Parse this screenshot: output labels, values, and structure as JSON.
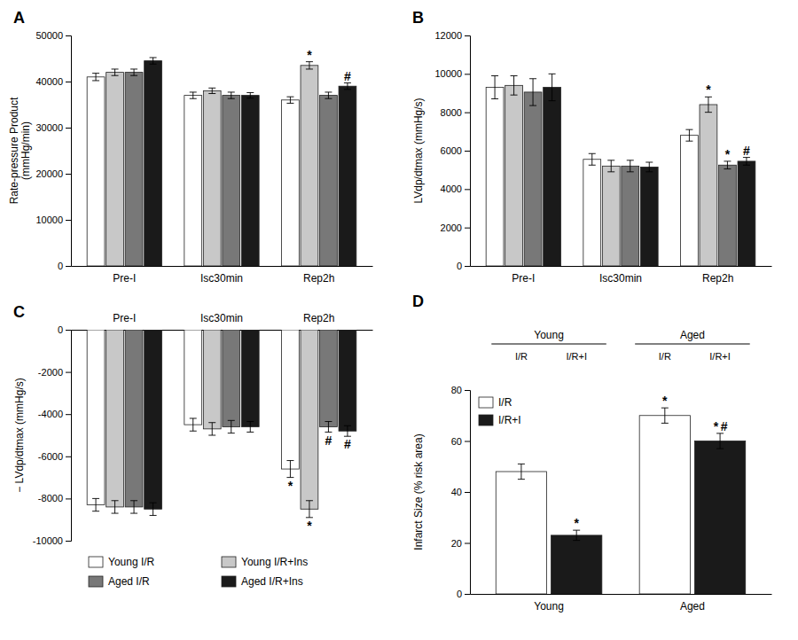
{
  "chart_data": [
    {
      "type": "bar",
      "title": "A",
      "y_label": "Rate-pressure Product\n(mmHg/min)",
      "categories": [
        "Pre-I",
        "Isc30min",
        "Rep2h"
      ],
      "series": [
        {
          "color": "#ffffff",
          "values": [
            41000,
            37000,
            36000
          ],
          "errors": [
            800,
            700,
            700
          ]
        },
        {
          "color": "#c8c8c8",
          "values": [
            42000,
            38000,
            43500
          ],
          "errors": [
            700,
            600,
            800
          ]
        },
        {
          "color": "#787878",
          "values": [
            42000,
            37000,
            37000
          ],
          "errors": [
            700,
            700,
            700
          ]
        },
        {
          "color": "#1a1a1a",
          "values": [
            44500,
            37000,
            39000
          ],
          "errors": [
            700,
            600,
            700
          ]
        }
      ],
      "ylim": [
        0,
        50000
      ],
      "yticks": [
        0,
        10000,
        20000,
        30000,
        40000,
        50000
      ],
      "annotations": [
        {
          "text": "*",
          "series": 1,
          "category": 2
        },
        {
          "text": "#",
          "series": 3,
          "category": 2
        }
      ]
    },
    {
      "type": "bar",
      "title": "B",
      "y_label": "LVdp/dtmax (mmHg/s)",
      "categories": [
        "Pre-I",
        "Isc30min",
        "Rep2h"
      ],
      "series": [
        {
          "color": "#ffffff",
          "values": [
            9300,
            5550,
            6800
          ],
          "errors": [
            600,
            300,
            300
          ]
        },
        {
          "color": "#c8c8c8",
          "values": [
            9400,
            5200,
            8400
          ],
          "errors": [
            500,
            300,
            400
          ]
        },
        {
          "color": "#787878",
          "values": [
            9050,
            5200,
            5250
          ],
          "errors": [
            700,
            300,
            200
          ]
        },
        {
          "color": "#1a1a1a",
          "values": [
            9300,
            5150,
            5450
          ],
          "errors": [
            700,
            250,
            200
          ]
        }
      ],
      "ylim": [
        0,
        12000
      ],
      "yticks": [
        0,
        2000,
        4000,
        6000,
        8000,
        10000,
        12000
      ],
      "annotations": [
        {
          "text": "*",
          "series": 1,
          "category": 2
        },
        {
          "text": "*",
          "series": 2,
          "category": 2
        },
        {
          "text": "#",
          "series": 3,
          "category": 2
        }
      ]
    },
    {
      "type": "bar",
      "title": "C",
      "y_label": "− LVdp/dtmax (mmHg/s)",
      "categories": [
        "Pre-I",
        "Isc30min",
        "Rep2h"
      ],
      "series": [
        {
          "name": "Young I/R",
          "color": "#ffffff",
          "values": [
            -8300,
            -4500,
            -6600
          ],
          "errors": [
            300,
            300,
            400
          ]
        },
        {
          "name": "Young I/R+Ins",
          "color": "#c8c8c8",
          "values": [
            -8400,
            -4700,
            -8500
          ],
          "errors": [
            300,
            300,
            400
          ]
        },
        {
          "name": "Aged I/R",
          "color": "#787878",
          "values": [
            -8400,
            -4600,
            -4600
          ],
          "errors": [
            300,
            300,
            250
          ]
        },
        {
          "name": "Aged I/R+Ins",
          "color": "#1a1a1a",
          "values": [
            -8500,
            -4600,
            -4800
          ],
          "errors": [
            300,
            250,
            250
          ]
        }
      ],
      "ylim": [
        -10000,
        0
      ],
      "yticks": [
        -10000,
        -8000,
        -6000,
        -4000,
        -2000,
        0
      ],
      "legend": "bottom",
      "annotations": [
        {
          "text": "*",
          "series": 0,
          "category": 2
        },
        {
          "text": "*",
          "series": 1,
          "category": 2
        },
        {
          "text": "#",
          "series": 2,
          "category": 2
        },
        {
          "text": "#",
          "series": 3,
          "category": 2
        }
      ]
    },
    {
      "type": "bar",
      "title": "D",
      "y_label": "Infarct Size (% risk area)",
      "categories": [
        "Young",
        "Aged"
      ],
      "series": [
        {
          "name": "I/R",
          "color": "#ffffff",
          "values": [
            48,
            70
          ],
          "errors": [
            3,
            3
          ]
        },
        {
          "name": "I/R+I",
          "color": "#1a1a1a",
          "values": [
            23,
            60
          ],
          "errors": [
            2,
            3
          ]
        }
      ],
      "ylim": [
        0,
        80
      ],
      "yticks": [
        0,
        20,
        40,
        60,
        80
      ],
      "legend": "upper left",
      "annotations": [
        {
          "text": "*",
          "series": 1,
          "category": 0
        },
        {
          "text": "*",
          "series": 0,
          "category": 1
        },
        {
          "text": "*",
          "series": 1,
          "category": 1
        },
        {
          "text": "#",
          "series": 1,
          "category": 1
        },
        {
          "text": "Young",
          "category": 0,
          "anchor": "header"
        },
        {
          "text": "Aged",
          "category": 1,
          "anchor": "header"
        },
        {
          "text": "I/R",
          "series": 0,
          "category": 0,
          "anchor": "header"
        },
        {
          "text": "I/R+I",
          "series": 1,
          "category": 0,
          "anchor": "header"
        },
        {
          "text": "I/R",
          "series": 0,
          "category": 1,
          "anchor": "header"
        },
        {
          "text": "I/R+I",
          "series": 1,
          "category": 1,
          "anchor": "header"
        }
      ]
    }
  ]
}
